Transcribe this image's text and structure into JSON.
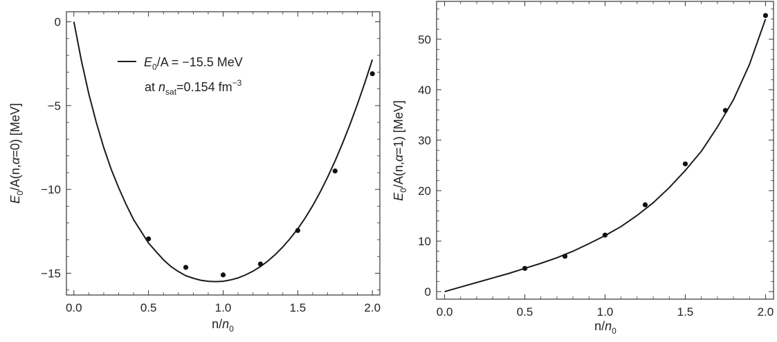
{
  "chart_data": [
    {
      "type": "line",
      "xlabel": "n/n0",
      "ylabel": "E0/A(n,α=0) [MeV]",
      "xlim": [
        -0.05,
        2.05
      ],
      "ylim": [
        -16.3,
        0.6
      ],
      "x_ticks": [
        "0.0",
        "0.5",
        "1.0",
        "1.5",
        "2.0"
      ],
      "y_ticks": [
        "0",
        "-5",
        "-10",
        "-15"
      ],
      "legend": {
        "line1": {
          "prefix": "E",
          "sub": "0",
          "suffix": "/A = −15.5 MeV"
        },
        "line2": {
          "prefix": "at ",
          "n": "n",
          "sub": "sat",
          "mid": "=0.154 fm",
          "sup": "−3"
        }
      },
      "series": [
        {
          "style": "line",
          "x": [
            0.0,
            0.05,
            0.1,
            0.15,
            0.2,
            0.25,
            0.3,
            0.35,
            0.4,
            0.45,
            0.5,
            0.55,
            0.6,
            0.65,
            0.7,
            0.75,
            0.8,
            0.85,
            0.9,
            0.95,
            1.0,
            1.05,
            1.1,
            1.15,
            1.2,
            1.25,
            1.3,
            1.35,
            1.4,
            1.45,
            1.5,
            1.55,
            1.6,
            1.65,
            1.7,
            1.75,
            1.8,
            1.85,
            1.9,
            1.95,
            2.0
          ],
          "y": [
            0.0,
            -2.3,
            -4.3,
            -6.0,
            -7.5,
            -8.8,
            -9.9,
            -10.9,
            -11.8,
            -12.5,
            -13.2,
            -13.7,
            -14.2,
            -14.6,
            -14.9,
            -15.15,
            -15.3,
            -15.42,
            -15.48,
            -15.5,
            -15.48,
            -15.4,
            -15.28,
            -15.1,
            -14.88,
            -14.6,
            -14.27,
            -13.88,
            -13.43,
            -12.92,
            -12.35,
            -11.7,
            -10.97,
            -10.16,
            -9.27,
            -8.3,
            -7.25,
            -6.12,
            -4.91,
            -3.62,
            -2.25
          ]
        },
        {
          "style": "points",
          "x": [
            0.5,
            0.75,
            1.0,
            1.25,
            1.5,
            1.75,
            2.0
          ],
          "y": [
            -12.95,
            -14.65,
            -15.1,
            -14.45,
            -12.45,
            -8.9,
            -3.1
          ]
        }
      ]
    },
    {
      "type": "line",
      "xlabel": "n/n0",
      "ylabel": "E0/A(n,α=1) [MeV]",
      "xlim": [
        -0.05,
        2.05
      ],
      "ylim": [
        -1.5,
        57.5
      ],
      "x_ticks": [
        "0.0",
        "0.5",
        "1.0",
        "1.5",
        "2.0"
      ],
      "y_ticks": [
        "0",
        "10",
        "20",
        "30",
        "40",
        "50"
      ],
      "series": [
        {
          "style": "line",
          "x": [
            0.0,
            0.1,
            0.2,
            0.3,
            0.4,
            0.5,
            0.6,
            0.7,
            0.8,
            0.9,
            1.0,
            1.1,
            1.2,
            1.3,
            1.4,
            1.5,
            1.6,
            1.7,
            1.8,
            1.9,
            2.0
          ],
          "y": [
            0.0,
            0.9,
            1.8,
            2.7,
            3.6,
            4.6,
            5.6,
            6.7,
            8.0,
            9.5,
            11.1,
            12.9,
            15.1,
            17.6,
            20.6,
            24.0,
            27.8,
            32.6,
            38.0,
            45.0,
            54.0
          ]
        },
        {
          "style": "points",
          "x": [
            0.5,
            0.75,
            1.0,
            1.25,
            1.5,
            1.75,
            2.0
          ],
          "y": [
            4.6,
            7.0,
            11.2,
            17.2,
            25.3,
            35.9,
            54.7
          ]
        }
      ]
    }
  ]
}
